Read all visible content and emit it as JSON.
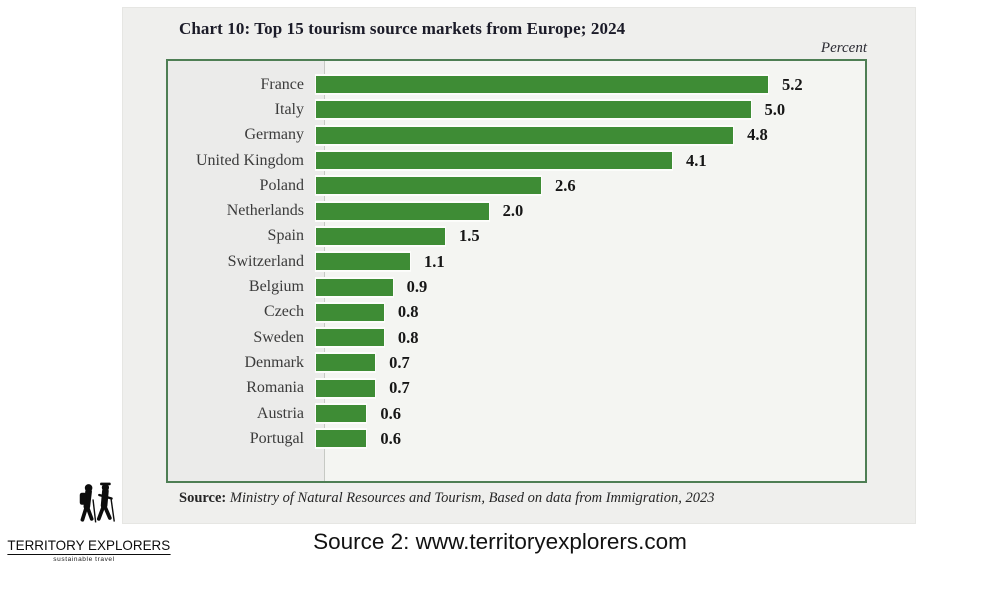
{
  "page": {
    "caption": "Source 2: www.territoryexplorers.com"
  },
  "logo": {
    "name": "TERRITORY EXPLORERS",
    "tagline": "sustainable travel"
  },
  "chart": {
    "title": "Chart 10: Top 15 tourism source markets from Europe; 2024",
    "unit_label": "Percent",
    "source_prefix": "Source:",
    "source_text": " Ministry of Natural Resources and Tourism, Based on data from Immigration, 2023",
    "bar_color": "#3e8c35",
    "plot_border_color": "#4e7e54"
  },
  "chart_data": {
    "type": "bar",
    "orientation": "horizontal",
    "title": "Chart 10: Top 15 tourism source markets from Europe; 2024",
    "xlabel": "Percent",
    "xlim": [
      0,
      5.6
    ],
    "grid": false,
    "legend": false,
    "categories": [
      "France",
      "Italy",
      "Germany",
      "United Kingdom",
      "Poland",
      "Netherlands",
      "Spain",
      "Switzerland",
      "Belgium",
      "Czech",
      "Sweden",
      "Denmark",
      "Romania",
      "Austria",
      "Portugal"
    ],
    "values": [
      5.2,
      5.0,
      4.8,
      4.1,
      2.6,
      2.0,
      1.5,
      1.1,
      0.9,
      0.8,
      0.8,
      0.7,
      0.7,
      0.6,
      0.6
    ],
    "value_labels": [
      "5.2",
      "5.0",
      "4.8",
      "4.1",
      "2.6",
      "2.0",
      "1.5",
      "1.1",
      "0.9",
      "0.8",
      "0.8",
      "0.7",
      "0.7",
      "0.6",
      "0.6"
    ]
  }
}
